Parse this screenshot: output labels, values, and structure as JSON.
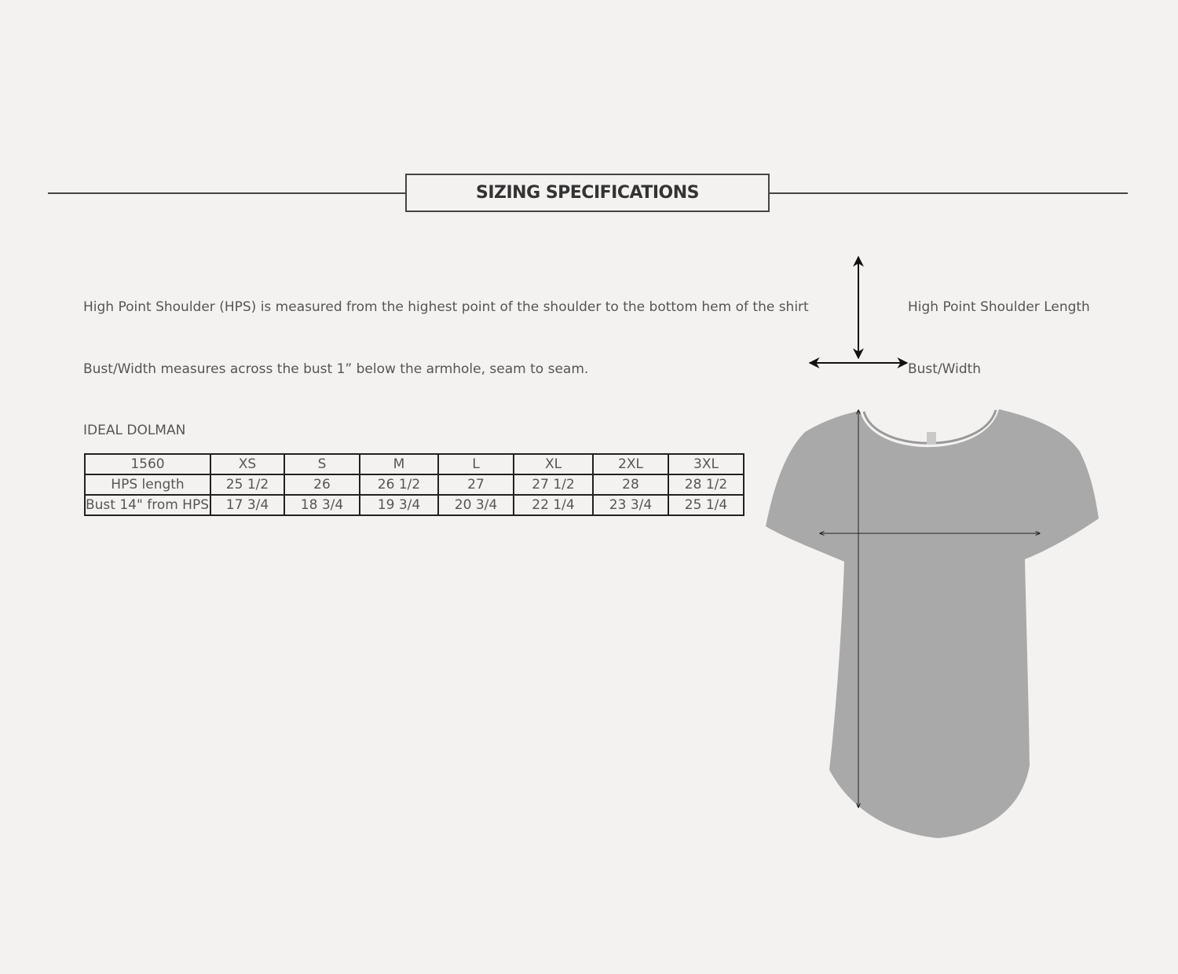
{
  "header": {
    "title": "SIZING SPECIFICATIONS"
  },
  "descriptions": {
    "hps": "High Point Shoulder (HPS) is measured from the highest point of the shoulder to the bottom hem of the shirt",
    "bust": "Bust/Width measures across the bust 1” below the armhole, seam to seam."
  },
  "legend": {
    "hps_label": "High Point Shoulder Length",
    "bust_label": "Bust/Width"
  },
  "product": {
    "name": "IDEAL DOLMAN",
    "shirt_color": "#a9a9a9"
  },
  "size_table": {
    "header": [
      "1560",
      "XS",
      "S",
      "M",
      "L",
      "XL",
      "2XL",
      "3XL"
    ],
    "rows": [
      [
        "HPS length",
        "25 1/2",
        "26",
        "26  1/2",
        "27",
        "27 1/2",
        "28",
        "28 1/2"
      ],
      [
        "Bust 14\" from HPS",
        "17 3/4",
        "18 3/4",
        "19 3/4",
        "20 3/4",
        "22 1/4",
        "23 3/4",
        "25 1/4"
      ]
    ]
  }
}
